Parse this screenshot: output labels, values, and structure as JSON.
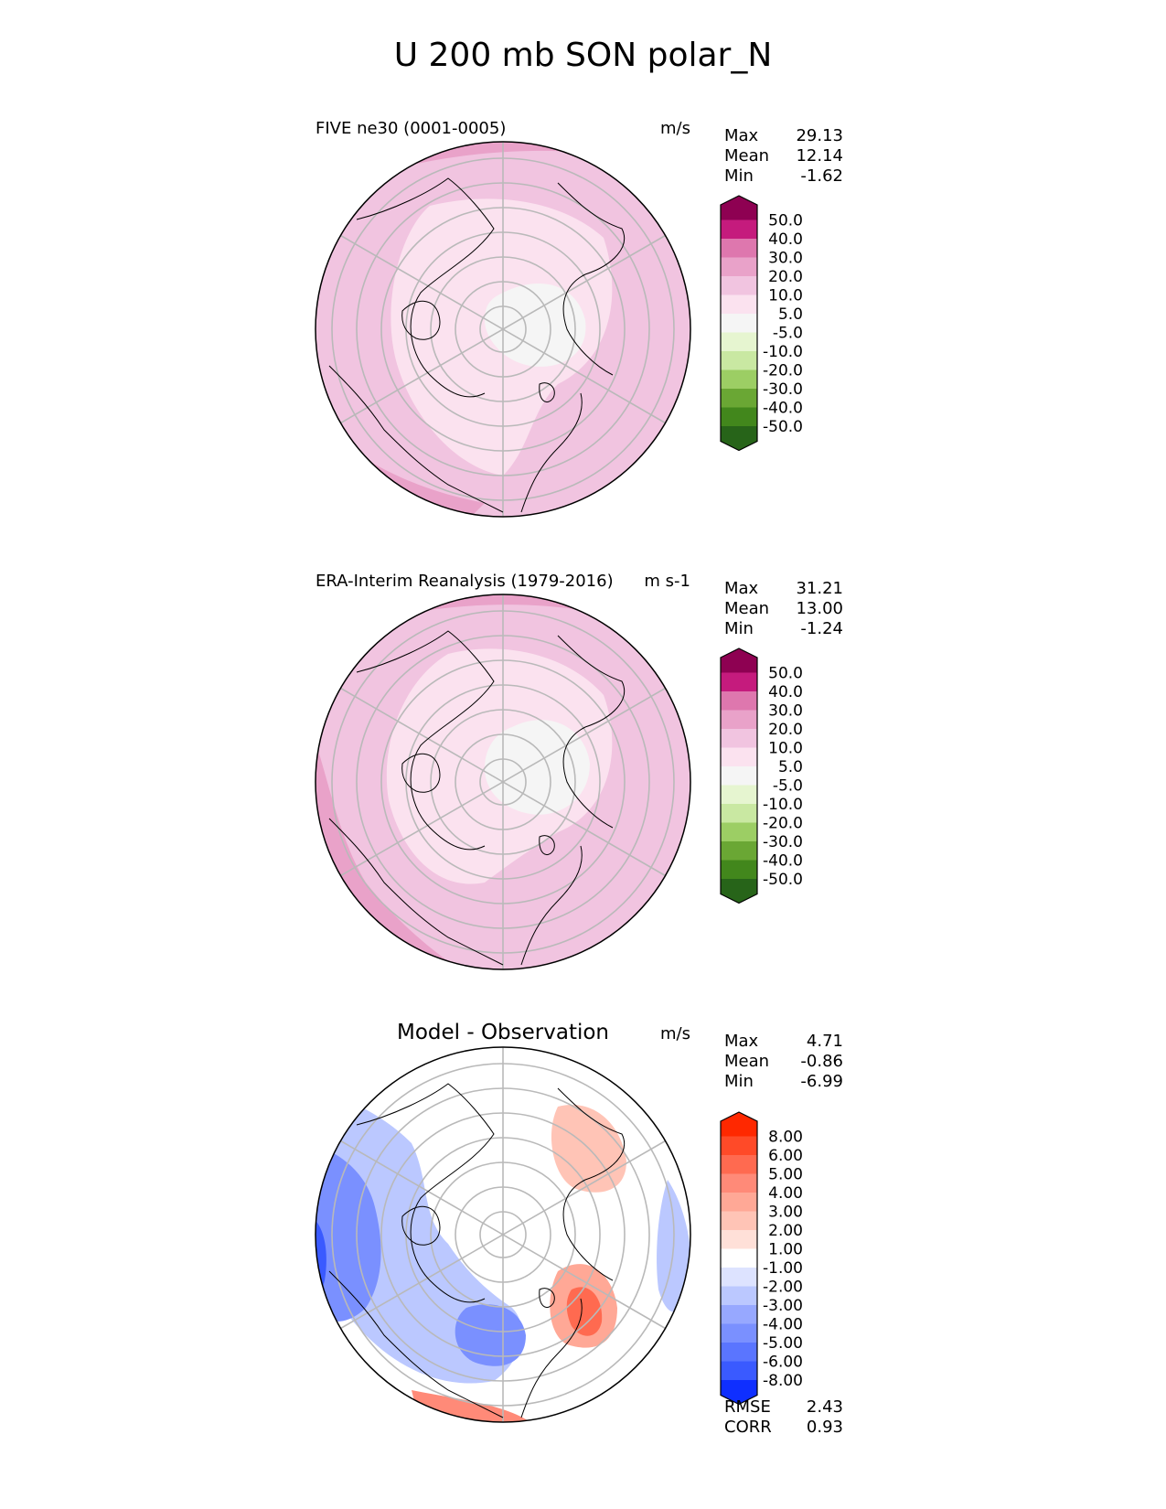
{
  "title": "U 200 mb SON polar_N",
  "panels": [
    {
      "name": "test",
      "label": "FIVE ne30 (0001-0005)",
      "units": "m/s",
      "stats": [
        {
          "label": "Max",
          "value": "29.13"
        },
        {
          "label": "Mean",
          "value": "12.14"
        },
        {
          "label": "Min",
          "value": "-1.62"
        }
      ],
      "colorbar": {
        "labels": [
          "50.0",
          "40.0",
          "30.0",
          "20.0",
          "10.0",
          "5.0",
          "-5.0",
          "-10.0",
          "-20.0",
          "-30.0",
          "-40.0",
          "-50.0"
        ],
        "colors": [
          "#8e0152",
          "#c51b7d",
          "#de77ae",
          "#e9a2c9",
          "#f1c4e0",
          "#fbe2ef",
          "#f5f5f5",
          "#e6f5d0",
          "#c9e8a2",
          "#9cce64",
          "#6aa734",
          "#42871c",
          "#276419"
        ]
      }
    },
    {
      "name": "reference",
      "label": "ERA-Interim Reanalysis (1979-2016)",
      "units": "m s-1",
      "stats": [
        {
          "label": "Max",
          "value": "31.21"
        },
        {
          "label": "Mean",
          "value": "13.00"
        },
        {
          "label": "Min",
          "value": "-1.24"
        }
      ],
      "colorbar": {
        "labels": [
          "50.0",
          "40.0",
          "30.0",
          "20.0",
          "10.0",
          "5.0",
          "-5.0",
          "-10.0",
          "-20.0",
          "-30.0",
          "-40.0",
          "-50.0"
        ],
        "colors": [
          "#8e0152",
          "#c51b7d",
          "#de77ae",
          "#e9a2c9",
          "#f1c4e0",
          "#fbe2ef",
          "#f5f5f5",
          "#e6f5d0",
          "#c9e8a2",
          "#9cce64",
          "#6aa734",
          "#42871c",
          "#276419"
        ]
      }
    },
    {
      "name": "difference",
      "label": "Model - Observation",
      "units": "m/s",
      "stats": [
        {
          "label": "Max",
          "value": "4.71"
        },
        {
          "label": "Mean",
          "value": "-0.86"
        },
        {
          "label": "Min",
          "value": "-6.99"
        }
      ],
      "extra": [
        {
          "label": "RMSE",
          "value": "2.43"
        },
        {
          "label": "CORR",
          "value": "0.93"
        }
      ],
      "colorbar": {
        "labels": [
          "8.00",
          "6.00",
          "5.00",
          "4.00",
          "3.00",
          "2.00",
          "1.00",
          "-1.00",
          "-2.00",
          "-3.00",
          "-4.00",
          "-5.00",
          "-6.00",
          "-8.00"
        ],
        "colors": [
          "#ff2800",
          "#ff4a28",
          "#ff6a50",
          "#ff8a78",
          "#ffa896",
          "#ffc4b6",
          "#ffe0d8",
          "#ffffff",
          "#dde3ff",
          "#bbc8ff",
          "#97a8ff",
          "#7a90ff",
          "#5a75ff",
          "#3a5aff",
          "#0f2fff"
        ]
      }
    }
  ]
}
